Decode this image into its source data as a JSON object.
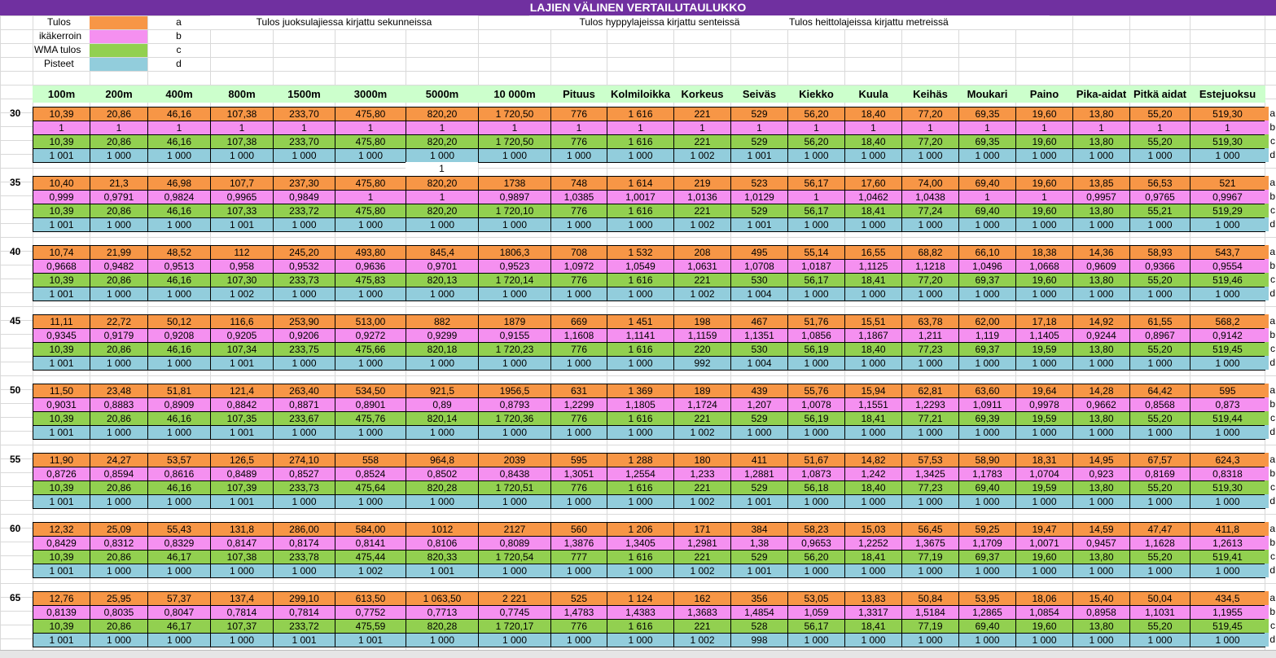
{
  "title": "LAJIEN VÄLINEN VERTAILUTAULUKKO",
  "legend": [
    {
      "label": "Tulos",
      "letter": "a"
    },
    {
      "label": "ikäkerroin",
      "letter": "b"
    },
    {
      "label": "WMA tulos",
      "letter": "c"
    },
    {
      "label": "Pisteet",
      "letter": "d"
    }
  ],
  "notes": [
    "Tulos juoksulajiessa kirjattu sekunneissa",
    "Tulos hyppylajeissa kirjattu senteissä",
    "Tulos heittolajeissa kirjattu metreissä"
  ],
  "columns": [
    "100m",
    "200m",
    "400m",
    "800m",
    "1500m",
    "3000m",
    "5000m",
    "10 000m",
    "Pituus",
    "Kolmiloikka",
    "Korkeus",
    "Seiväs",
    "Kiekko",
    "Kuula",
    "Keihäs",
    "Moukari",
    "Paino",
    "Pika-aidat",
    "Pitkä aidat",
    "Estejuoksu"
  ],
  "blocks": [
    {
      "age": "30",
      "rows": [
        [
          "10,39",
          "20,86",
          "46,16",
          "107,38",
          "233,70",
          "475,80",
          "820,20",
          "1 720,50",
          "776",
          "1 616",
          "221",
          "529",
          "56,20",
          "18,40",
          "77,20",
          "69,35",
          "19,60",
          "13,80",
          "55,20",
          "519,30"
        ],
        [
          "1",
          "1",
          "1",
          "1",
          "1",
          "1",
          "1",
          "1",
          "1",
          "1",
          "1",
          "1",
          "1",
          "1",
          "1",
          "1",
          "1",
          "1",
          "1",
          "1"
        ],
        [
          "10,39",
          "20,86",
          "46,16",
          "107,38",
          "233,70",
          "475,80",
          "820,20",
          "1 720,50",
          "776",
          "1 616",
          "221",
          "529",
          "56,20",
          "18,40",
          "77,20",
          "69,35",
          "19,60",
          "13,80",
          "55,20",
          "519,30"
        ],
        [
          "1 001",
          "1 000",
          "1 000",
          "1 000",
          "1 000",
          "1 000",
          "1 000",
          "1 000",
          "1 000",
          "1 000",
          "1 002",
          "1 001",
          "1 000",
          "1 000",
          "1 000",
          "1 000",
          "1 000",
          "1 000",
          "1 000",
          "1 000"
        ]
      ],
      "extra_row": [
        null,
        null,
        null,
        null,
        null,
        null,
        "1",
        null,
        null,
        null,
        null,
        null,
        null,
        null,
        null,
        null,
        null,
        null,
        null,
        null
      ]
    },
    {
      "age": "35",
      "rows": [
        [
          "10,40",
          "21,3",
          "46,98",
          "107,7",
          "237,30",
          "475,80",
          "820,20",
          "1738",
          "748",
          "1 614",
          "219",
          "523",
          "56,17",
          "17,60",
          "74,00",
          "69,40",
          "19,60",
          "13,85",
          "56,53",
          "521"
        ],
        [
          "0,999",
          "0,9791",
          "0,9824",
          "0,9965",
          "0,9849",
          "1",
          "1",
          "0,9897",
          "1,0385",
          "1,0017",
          "1,0136",
          "1,0129",
          "1",
          "1,0462",
          "1,0438",
          "1",
          "1",
          "0,9957",
          "0,9765",
          "0,9967"
        ],
        [
          "10,39",
          "20,86",
          "46,16",
          "107,33",
          "233,72",
          "475,80",
          "820,20",
          "1 720,10",
          "776",
          "1 616",
          "221",
          "529",
          "56,17",
          "18,41",
          "77,24",
          "69,40",
          "19,60",
          "13,80",
          "55,21",
          "519,29"
        ],
        [
          "1 001",
          "1 000",
          "1 000",
          "1 001",
          "1 000",
          "1 000",
          "1 000",
          "1 000",
          "1 000",
          "1 000",
          "1 002",
          "1 001",
          "1 000",
          "1 000",
          "1 000",
          "1 000",
          "1 000",
          "1 000",
          "1 000",
          "1 000"
        ]
      ]
    },
    {
      "age": "40",
      "rows": [
        [
          "10,74",
          "21,99",
          "48,52",
          "112",
          "245,20",
          "493,80",
          "845,4",
          "1806,3",
          "708",
          "1 532",
          "208",
          "495",
          "55,14",
          "16,55",
          "68,82",
          "66,10",
          "18,38",
          "14,36",
          "58,93",
          "543,7"
        ],
        [
          "0,9668",
          "0,9482",
          "0,9513",
          "0,958",
          "0,9532",
          "0,9636",
          "0,9701",
          "0,9523",
          "1,0972",
          "1,0549",
          "1,0631",
          "1,0708",
          "1,0187",
          "1,1125",
          "1,1218",
          "1,0496",
          "1,0668",
          "0,9609",
          "0,9366",
          "0,9554"
        ],
        [
          "10,39",
          "20,86",
          "46,16",
          "107,30",
          "233,73",
          "475,83",
          "820,13",
          "1 720,14",
          "776",
          "1 616",
          "221",
          "530",
          "56,17",
          "18,41",
          "77,20",
          "69,37",
          "19,60",
          "13,80",
          "55,20",
          "519,46"
        ],
        [
          "1 001",
          "1 000",
          "1 000",
          "1 002",
          "1 000",
          "1 000",
          "1 000",
          "1 000",
          "1 000",
          "1 000",
          "1 002",
          "1 004",
          "1 000",
          "1 000",
          "1 000",
          "1 000",
          "1 000",
          "1 000",
          "1 000",
          "1 000"
        ]
      ]
    },
    {
      "age": "45",
      "rows": [
        [
          "11,11",
          "22,72",
          "50,12",
          "116,6",
          "253,90",
          "513,00",
          "882",
          "1879",
          "669",
          "1 451",
          "198",
          "467",
          "51,76",
          "15,51",
          "63,78",
          "62,00",
          "17,18",
          "14,92",
          "61,55",
          "568,2"
        ],
        [
          "0,9345",
          "0,9179",
          "0,9208",
          "0,9205",
          "0,9206",
          "0,9272",
          "0,9299",
          "0,9155",
          "1,1608",
          "1,1141",
          "1,1159",
          "1,1351",
          "1,0856",
          "1,1867",
          "1,211",
          "1,119",
          "1,1405",
          "0,9244",
          "0,8967",
          "0,9142"
        ],
        [
          "10,39",
          "20,86",
          "46,16",
          "107,34",
          "233,75",
          "475,66",
          "820,18",
          "1 720,23",
          "776",
          "1 616",
          "220",
          "530",
          "56,19",
          "18,40",
          "77,23",
          "69,37",
          "19,59",
          "13,80",
          "55,20",
          "519,45"
        ],
        [
          "1 001",
          "1 000",
          "1 000",
          "1 001",
          "1 000",
          "1 000",
          "1 000",
          "1 000",
          "1 000",
          "1 000",
          "992",
          "1 004",
          "1 000",
          "1 000",
          "1 000",
          "1 000",
          "1 000",
          "1 000",
          "1 000",
          "1 000"
        ]
      ]
    },
    {
      "age": "50",
      "rows": [
        [
          "11,50",
          "23,48",
          "51,81",
          "121,4",
          "263,40",
          "534,50",
          "921,5",
          "1956,5",
          "631",
          "1 369",
          "189",
          "439",
          "55,76",
          "15,94",
          "62,81",
          "63,60",
          "19,64",
          "14,28",
          "64,42",
          "595"
        ],
        [
          "0,9031",
          "0,8883",
          "0,8909",
          "0,8842",
          "0,8871",
          "0,8901",
          "0,89",
          "0,8793",
          "1,2299",
          "1,1805",
          "1,1724",
          "1,207",
          "1,0078",
          "1,1551",
          "1,2293",
          "1,0911",
          "0,9978",
          "0,9662",
          "0,8568",
          "0,873"
        ],
        [
          "10,39",
          "20,86",
          "46,16",
          "107,35",
          "233,67",
          "475,76",
          "820,14",
          "1 720,36",
          "776",
          "1 616",
          "221",
          "529",
          "56,19",
          "18,41",
          "77,21",
          "69,39",
          "19,59",
          "13,80",
          "55,20",
          "519,44"
        ],
        [
          "1 001",
          "1 000",
          "1 000",
          "1 001",
          "1 000",
          "1 000",
          "1 000",
          "1 000",
          "1 000",
          "1 000",
          "1 002",
          "1 000",
          "1 000",
          "1 000",
          "1 000",
          "1 000",
          "1 000",
          "1 000",
          "1 000",
          "1 000"
        ]
      ]
    },
    {
      "age": "55",
      "rows": [
        [
          "11,90",
          "24,27",
          "53,57",
          "126,5",
          "274,10",
          "558",
          "964,8",
          "2039",
          "595",
          "1 288",
          "180",
          "411",
          "51,67",
          "14,82",
          "57,53",
          "58,90",
          "18,31",
          "14,95",
          "67,57",
          "624,3"
        ],
        [
          "0,8726",
          "0,8594",
          "0,8616",
          "0,8489",
          "0,8527",
          "0,8524",
          "0,8502",
          "0,8438",
          "1,3051",
          "1,2554",
          "1,233",
          "1,2881",
          "1,0873",
          "1,242",
          "1,3425",
          "1,1783",
          "1,0704",
          "0,923",
          "0,8169",
          "0,8318"
        ],
        [
          "10,39",
          "20,86",
          "46,16",
          "107,39",
          "233,73",
          "475,64",
          "820,28",
          "1 720,51",
          "776",
          "1 616",
          "221",
          "529",
          "56,18",
          "18,40",
          "77,23",
          "69,40",
          "19,59",
          "13,80",
          "55,20",
          "519,30"
        ],
        [
          "1 001",
          "1 000",
          "1 000",
          "1 001",
          "1 000",
          "1 000",
          "1 000",
          "1 000",
          "1 000",
          "1 000",
          "1 002",
          "1 001",
          "1 000",
          "1 000",
          "1 000",
          "1 000",
          "1 000",
          "1 000",
          "1 000",
          "1 000"
        ]
      ]
    },
    {
      "age": "60",
      "rows": [
        [
          "12,32",
          "25,09",
          "55,43",
          "131,8",
          "286,00",
          "584,00",
          "1012",
          "2127",
          "560",
          "1 206",
          "171",
          "384",
          "58,23",
          "15,03",
          "56,45",
          "59,25",
          "19,47",
          "14,59",
          "47,47",
          "411,8"
        ],
        [
          "0,8429",
          "0,8312",
          "0,8329",
          "0,8147",
          "0,8174",
          "0,8141",
          "0,8106",
          "0,8089",
          "1,3876",
          "1,3405",
          "1,2981",
          "1,38",
          "0,9653",
          "1,2252",
          "1,3675",
          "1,1709",
          "1,0071",
          "0,9457",
          "1,1628",
          "1,2613"
        ],
        [
          "10,39",
          "20,86",
          "46,17",
          "107,38",
          "233,78",
          "475,44",
          "820,33",
          "1 720,54",
          "777",
          "1 616",
          "221",
          "529",
          "56,20",
          "18,41",
          "77,19",
          "69,37",
          "19,60",
          "13,80",
          "55,20",
          "519,41"
        ],
        [
          "1 001",
          "1 000",
          "1 000",
          "1 000",
          "1 000",
          "1 002",
          "1 001",
          "1 000",
          "1 000",
          "1 000",
          "1 002",
          "1 001",
          "1 000",
          "1 000",
          "1 000",
          "1 000",
          "1 000",
          "1 000",
          "1 000",
          "1 000"
        ]
      ]
    },
    {
      "age": "65",
      "rows": [
        [
          "12,76",
          "25,95",
          "57,37",
          "137,4",
          "299,10",
          "613,50",
          "1 063,50",
          "2 221",
          "525",
          "1 124",
          "162",
          "356",
          "53,05",
          "13,83",
          "50,84",
          "53,95",
          "18,06",
          "15,40",
          "50,04",
          "434,5"
        ],
        [
          "0,8139",
          "0,8035",
          "0,8047",
          "0,7814",
          "0,7814",
          "0,7752",
          "0,7713",
          "0,7745",
          "1,4783",
          "1,4383",
          "1,3683",
          "1,4854",
          "1,059",
          "1,3317",
          "1,5184",
          "1,2865",
          "1,0854",
          "0,8958",
          "1,1031",
          "1,1955"
        ],
        [
          "10,39",
          "20,86",
          "46,17",
          "107,37",
          "233,72",
          "475,59",
          "820,28",
          "1 720,17",
          "776",
          "1 616",
          "221",
          "528",
          "56,17",
          "18,41",
          "77,19",
          "69,40",
          "19,60",
          "13,80",
          "55,20",
          "519,45"
        ],
        [
          "1 001",
          "1 000",
          "1 000",
          "1 000",
          "1 001",
          "1 001",
          "1 000",
          "1 000",
          "1 000",
          "1 000",
          "1 002",
          "998",
          "1 000",
          "1 000",
          "1 000",
          "1 000",
          "1 000",
          "1 000",
          "1 000",
          "1 000"
        ]
      ]
    }
  ]
}
